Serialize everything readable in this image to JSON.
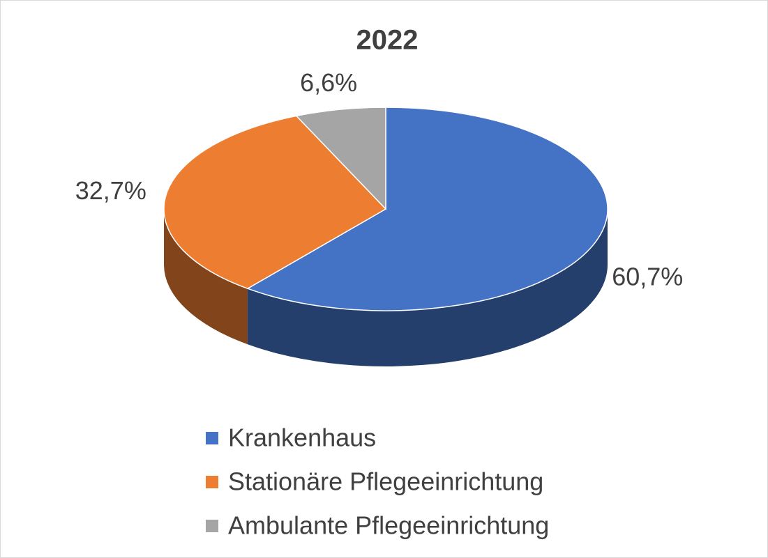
{
  "chart_data": {
    "type": "pie",
    "title": "2022",
    "categories": [
      "Krankenhaus",
      "Stationäre Pflegeeinrichtung",
      "Ambulante Pflegeeinrichtung"
    ],
    "values": [
      60.7,
      32.7,
      6.6
    ],
    "value_labels": [
      "60,7%",
      "32,7%",
      "6,6%"
    ],
    "colors": [
      "#4472c4",
      "#ed7d31",
      "#a5a5a5"
    ],
    "legend": "bottom"
  }
}
